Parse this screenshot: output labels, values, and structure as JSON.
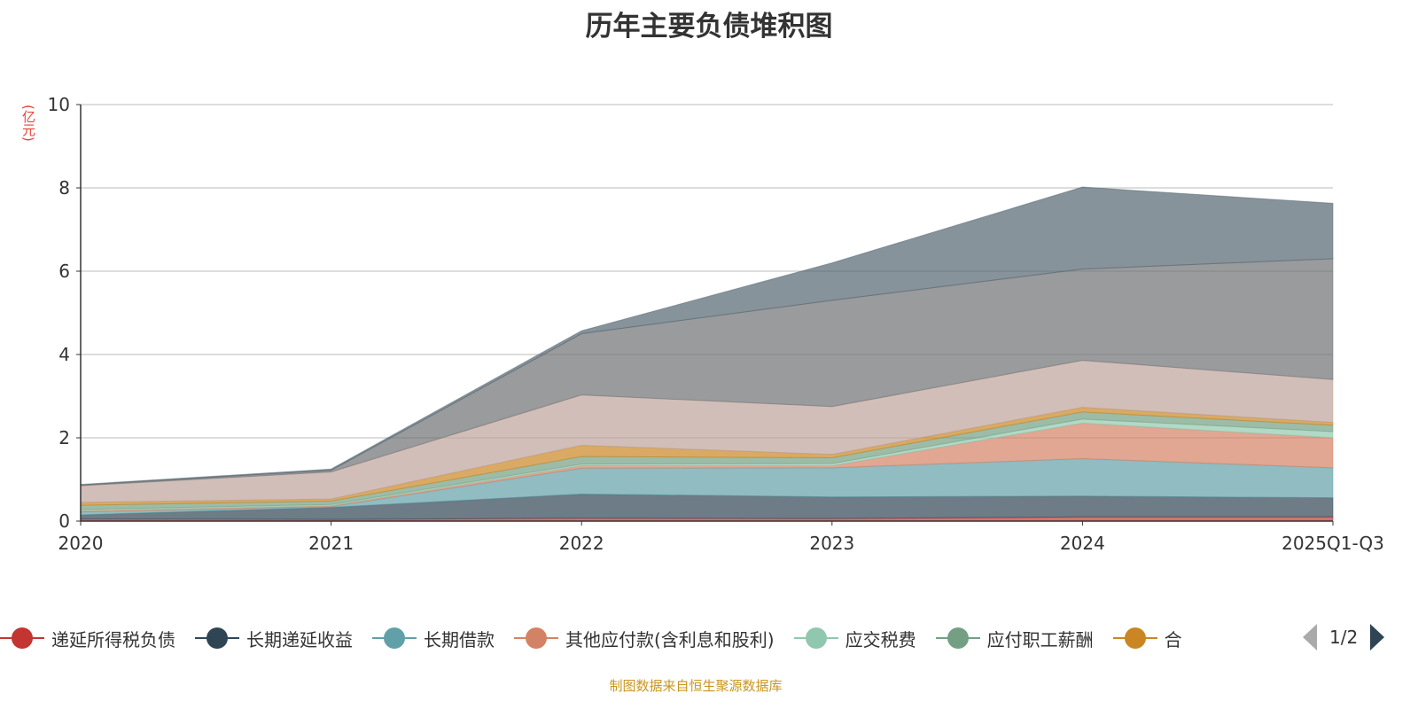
{
  "chart_data": {
    "type": "area",
    "stacked": true,
    "title": "历年主要负债堆积图",
    "ylabel": "(亿元)",
    "xlabel": "",
    "ylim": [
      0,
      10
    ],
    "yticks": [
      0,
      2,
      4,
      6,
      8,
      10
    ],
    "grid": true,
    "legend_position": "bottom",
    "categories": [
      "2020",
      "2021",
      "2022",
      "2023",
      "2024",
      "2025Q1-Q3"
    ],
    "series": [
      {
        "name": "递延所得税负债",
        "color": "#c23531",
        "values": [
          0.05,
          0.04,
          0.07,
          0.06,
          0.1,
          0.1
        ]
      },
      {
        "name": "长期递延收益",
        "color": "#2f4554",
        "values": [
          0.1,
          0.29,
          0.58,
          0.52,
          0.5,
          0.46
        ]
      },
      {
        "name": "长期借款",
        "color": "#61a0a8",
        "values": [
          0.07,
          0.02,
          0.62,
          0.7,
          0.9,
          0.72
        ]
      },
      {
        "name": "其他应付款(含利息和股利)",
        "color": "#d48265",
        "values": [
          0.03,
          0.02,
          0.06,
          0.05,
          0.85,
          0.72
        ]
      },
      {
        "name": "应交税费",
        "color": "#91c7ae",
        "values": [
          0.03,
          0.03,
          0.04,
          0.05,
          0.1,
          0.15
        ]
      },
      {
        "name": "应付职工薪酬",
        "color": "#749f83",
        "values": [
          0.1,
          0.08,
          0.18,
          0.14,
          0.17,
          0.15
        ]
      },
      {
        "name": "合",
        "color": "#ca8622",
        "values": [
          0.07,
          0.05,
          0.27,
          0.08,
          0.11,
          0.07
        ]
      },
      {
        "name": null,
        "color": "#bda29a",
        "values": [
          0.4,
          0.65,
          1.21,
          1.15,
          1.13,
          1.03
        ]
      },
      {
        "name": null,
        "color": "#6e7074",
        "values": [
          0.02,
          0.04,
          1.47,
          2.55,
          2.19,
          2.9
        ]
      },
      {
        "name": null,
        "color": "#546570",
        "values": [
          0.01,
          0.03,
          0.07,
          0.9,
          1.97,
          1.33
        ]
      }
    ]
  },
  "legend": {
    "page": "1/2"
  },
  "source": "制图数据来自恒生聚源数据库"
}
